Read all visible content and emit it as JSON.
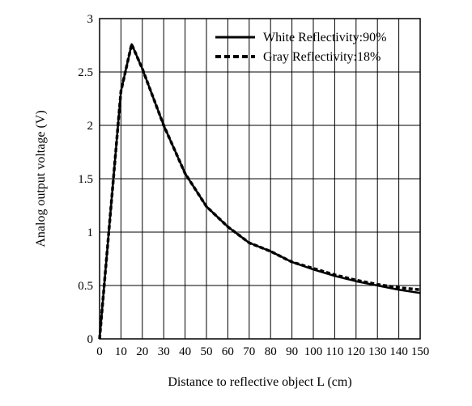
{
  "chart_data": {
    "type": "line",
    "title": "",
    "xlabel": "Distance to reflective object L (cm)",
    "ylabel": "Analog output voltage (V)",
    "xlim": [
      0,
      150
    ],
    "ylim": [
      0,
      3
    ],
    "x_ticks": [
      0,
      10,
      20,
      30,
      40,
      50,
      60,
      70,
      80,
      90,
      100,
      110,
      120,
      130,
      140,
      150
    ],
    "y_ticks": [
      0,
      0.5,
      1,
      1.5,
      2,
      2.5,
      3
    ],
    "x_tick_labels": [
      "0",
      "10",
      "20",
      "30",
      "40",
      "50",
      "60",
      "70",
      "80",
      "90",
      "100",
      "110",
      "120",
      "130",
      "140",
      "150"
    ],
    "y_tick_labels": [
      "0",
      "0.5",
      "1",
      "1.5",
      "2",
      "2.5",
      "3"
    ],
    "grid": true,
    "legend_position": "top-right",
    "series": [
      {
        "name": "White Reflectivity:90%",
        "style": "solid",
        "color": "#000000",
        "x": [
          0,
          10,
          15,
          20,
          30,
          40,
          50,
          60,
          70,
          80,
          90,
          100,
          110,
          120,
          130,
          140,
          150
        ],
        "y": [
          0,
          2.32,
          2.76,
          2.53,
          2.0,
          1.55,
          1.24,
          1.05,
          0.9,
          0.82,
          0.72,
          0.65,
          0.59,
          0.54,
          0.5,
          0.46,
          0.43
        ]
      },
      {
        "name": "Gray Reflectivity:18%",
        "style": "dashed",
        "color": "#000000",
        "x": [
          0,
          10,
          15,
          20,
          30,
          40,
          50,
          60,
          70,
          80,
          90,
          100,
          110,
          120,
          130,
          140,
          150
        ],
        "y": [
          0,
          2.32,
          2.76,
          2.53,
          2.0,
          1.55,
          1.24,
          1.05,
          0.9,
          0.82,
          0.72,
          0.66,
          0.6,
          0.55,
          0.51,
          0.48,
          0.46
        ]
      }
    ]
  }
}
